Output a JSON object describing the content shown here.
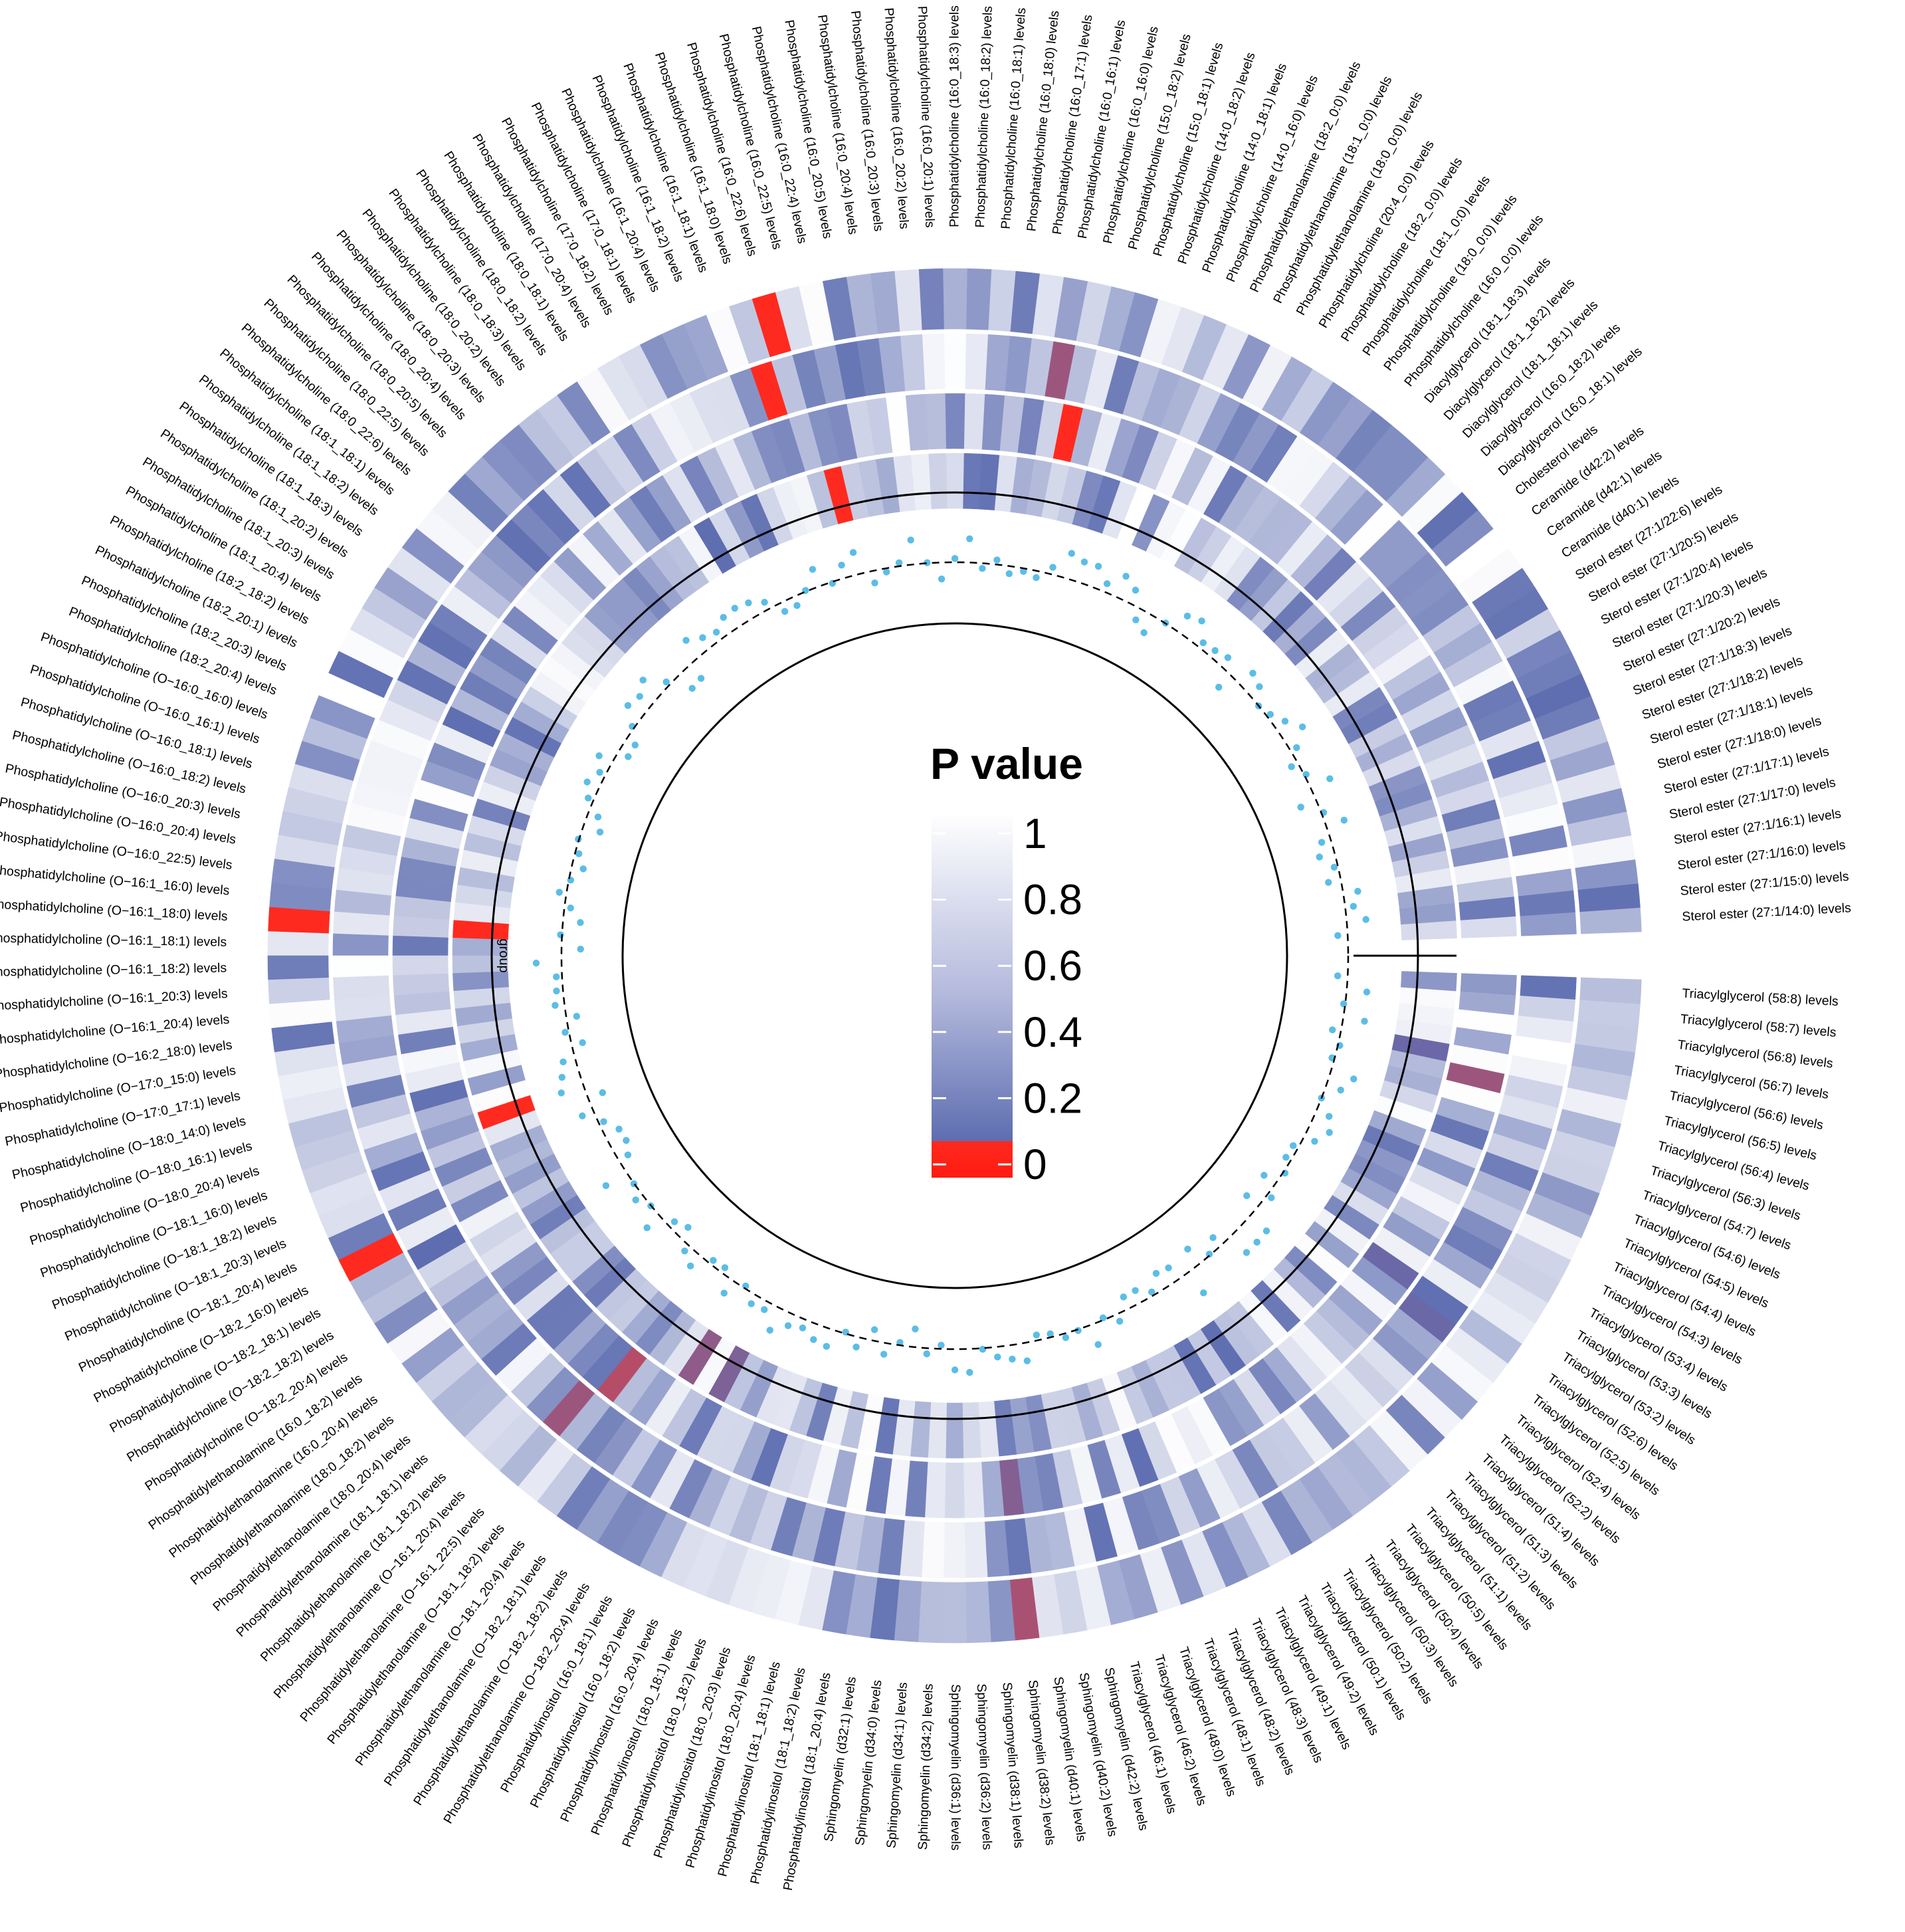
{
  "chart_data": {
    "type": "heatmap",
    "layout": "circular",
    "legend": {
      "title": "P value",
      "ticks": [
        "1",
        "0.8",
        "0.6",
        "0.4",
        "0.2",
        "0"
      ],
      "tick_values": [
        1,
        0.8,
        0.6,
        0.4,
        0.2,
        0
      ],
      "placement": "center"
    },
    "colors": {
      "high": "#ffffff",
      "low": "#5d6db0",
      "sig": "#ff2a1f"
    },
    "track_label": "group",
    "tracks": 4,
    "labels": [
      "Sterol ester (27:1/14:0) levels",
      "Sterol ester (27:1/15:0) levels",
      "Sterol ester (27:1/16:0) levels",
      "Sterol ester (27:1/16:1) levels",
      "Sterol ester (27:1/17:0) levels",
      "Sterol ester (27:1/17:1) levels",
      "Sterol ester (27:1/18:0) levels",
      "Sterol ester (27:1/18:1) levels",
      "Sterol ester (27:1/18:2) levels",
      "Sterol ester (27:1/18:3) levels",
      "Sterol ester (27:1/20:2) levels",
      "Sterol ester (27:1/20:3) levels",
      "Sterol ester (27:1/20:4) levels",
      "Sterol ester (27:1/20:5) levels",
      "Sterol ester (27:1/22:6) levels",
      "Ceramide (d40:1) levels",
      "Ceramide (d42:1) levels",
      "Ceramide (d42:2) levels",
      "Cholesterol levels",
      "Diacylglycerol (16:0_18:1) levels",
      "Diacylglycerol (16:0_18:2) levels",
      "Diacylglycerol (18:1_18:1) levels",
      "Diacylglycerol (18:1_18:2) levels",
      "Diacylglycerol (18:1_18:3) levels",
      "Phosphatidylcholine (16:0_0:0) levels",
      "Phosphatidylcholine (18:0_0:0) levels",
      "Phosphatidylcholine (18:1_0:0) levels",
      "Phosphatidylcholine (18:2_0:0) levels",
      "Phosphatidylcholine (20:4_0:0) levels",
      "Phosphatidylethanolamine (18:0_0:0) levels",
      "Phosphatidylethanolamine (18:1_0:0) levels",
      "Phosphatidylethanolamine (18:2_0:0) levels",
      "Phosphatidylcholine (14:0_16:0) levels",
      "Phosphatidylcholine (14:0_18:1) levels",
      "Phosphatidylcholine (14:0_18:2) levels",
      "Phosphatidylcholine (15:0_18:1) levels",
      "Phosphatidylcholine (15:0_18:2) levels",
      "Phosphatidylcholine (16:0_16:0) levels",
      "Phosphatidylcholine (16:0_16:1) levels",
      "Phosphatidylcholine (16:0_17:1) levels",
      "Phosphatidylcholine (16:0_18:0) levels",
      "Phosphatidylcholine (16:0_18:1) levels",
      "Phosphatidylcholine (16:0_18:2) levels",
      "Phosphatidylcholine (16:0_18:3) levels",
      "Phosphatidylcholine (16:0_20:1) levels",
      "Phosphatidylcholine (16:0_20:2) levels",
      "Phosphatidylcholine (16:0_20:3) levels",
      "Phosphatidylcholine (16:0_20:4) levels",
      "Phosphatidylcholine (16:0_20:5) levels",
      "Phosphatidylcholine (16:0_22:4) levels",
      "Phosphatidylcholine (16:0_22:5) levels",
      "Phosphatidylcholine (16:0_22:6) levels",
      "Phosphatidylcholine (16:1_18:0) levels",
      "Phosphatidylcholine (16:1_18:1) levels",
      "Phosphatidylcholine (16:1_18:2) levels",
      "Phosphatidylcholine (16:1_20:4) levels",
      "Phosphatidylcholine (17:0_18:1) levels",
      "Phosphatidylcholine (17:0_18:2) levels",
      "Phosphatidylcholine (17:0_20:4) levels",
      "Phosphatidylcholine (18:0_18:1) levels",
      "Phosphatidylcholine (18:0_18:2) levels",
      "Phosphatidylcholine (18:0_18:3) levels",
      "Phosphatidylcholine (18:0_20:2) levels",
      "Phosphatidylcholine (18:0_20:3) levels",
      "Phosphatidylcholine (18:0_20:4) levels",
      "Phosphatidylcholine (18:0_20:5) levels",
      "Phosphatidylcholine (18:0_22:5) levels",
      "Phosphatidylcholine (18:0_22:6) levels",
      "Phosphatidylcholine (18:1_18:1) levels",
      "Phosphatidylcholine (18:1_18:2) levels",
      "Phosphatidylcholine (18:1_18:3) levels",
      "Phosphatidylcholine (18:1_20:2) levels",
      "Phosphatidylcholine (18:1_20:3) levels",
      "Phosphatidylcholine (18:1_20:4) levels",
      "Phosphatidylcholine (18:2_18:2) levels",
      "Phosphatidylcholine (18:2_20:1) levels",
      "Phosphatidylcholine (18:2_20:3) levels",
      "Phosphatidylcholine (18:2_20:4) levels",
      "Phosphatidylcholine (O−16:0_16:0) levels",
      "Phosphatidylcholine (O−16:0_16:1) levels",
      "Phosphatidylcholine (O−16:0_18:1) levels",
      "Phosphatidylcholine (O−16:0_18:2) levels",
      "Phosphatidylcholine (O−16:0_20:3) levels",
      "Phosphatidylcholine (O−16:0_20:4) levels",
      "Phosphatidylcholine (O−16:0_22:5) levels",
      "Phosphatidylcholine (O−16:1_16:0) levels",
      "Phosphatidylcholine (O−16:1_18:0) levels",
      "Phosphatidylcholine (O−16:1_18:1) levels",
      "Phosphatidylcholine (O−16:1_18:2) levels",
      "Phosphatidylcholine (O−16:1_20:3) levels",
      "Phosphatidylcholine (O−16:1_20:4) levels",
      "Phosphatidylcholine (O−16:2_18:0) levels",
      "Phosphatidylcholine (O−17:0_15:0) levels",
      "Phosphatidylcholine (O−17:0_17:1) levels",
      "Phosphatidylcholine (O−18:0_14:0) levels",
      "Phosphatidylcholine (O−18:0_16:1) levels",
      "Phosphatidylcholine (O−18:0_20:4) levels",
      "Phosphatidylcholine (O−18:1_16:0) levels",
      "Phosphatidylcholine (O−18:1_18:2) levels",
      "Phosphatidylcholine (O−18:1_20:3) levels",
      "Phosphatidylcholine (O−18:1_20:4) levels",
      "Phosphatidylcholine (O−18:2_16:0) levels",
      "Phosphatidylcholine (O−18:2_18:1) levels",
      "Phosphatidylcholine (O−18:2_18:2) levels",
      "Phosphatidylcholine (O−18:2_20:4) levels",
      "Phosphatidylethanolamine (16:0_18:2) levels",
      "Phosphatidylethanolamine (16:0_20:4) levels",
      "Phosphatidylethanolamine (18:0_18:2) levels",
      "Phosphatidylethanolamine (18:0_20:4) levels",
      "Phosphatidylethanolamine (18:1_18:1) levels",
      "Phosphatidylethanolamine (18:1_18:2) levels",
      "Phosphatidylethanolamine (O−16:1_20:4) levels",
      "Phosphatidylethanolamine (O−16:1_22:5) levels",
      "Phosphatidylethanolamine (O−18:1_18:2) levels",
      "Phosphatidylethanolamine (O−18:1_20:4) levels",
      "Phosphatidylethanolamine (O−18:2_18:1) levels",
      "Phosphatidylethanolamine (O−18:2_18:2) levels",
      "Phosphatidylethanolamine (O−18:2_20:4) levels",
      "Phosphatidylinositol (16:0_18:1) levels",
      "Phosphatidylinositol (16:0_18:2) levels",
      "Phosphatidylinositol (16:0_20:4) levels",
      "Phosphatidylinositol (18:0_18:1) levels",
      "Phosphatidylinositol (18:0_18:2) levels",
      "Phosphatidylinositol (18:0_20:3) levels",
      "Phosphatidylinositol (18:0_20:4) levels",
      "Phosphatidylinositol (18:1_18:1) levels",
      "Phosphatidylinositol (18:1_18:2) levels",
      "Phosphatidylinositol (18:1_20:4) levels",
      "Sphingomyelin (d32:1) levels",
      "Sphingomyelin (d34:0) levels",
      "Sphingomyelin (d34:1) levels",
      "Sphingomyelin (d34:2) levels",
      "Sphingomyelin (d36:1) levels",
      "Sphingomyelin (d36:2) levels",
      "Sphingomyelin (d38:1) levels",
      "Sphingomyelin (d38:2) levels",
      "Sphingomyelin (d40:1) levels",
      "Sphingomyelin (d40:2) levels",
      "Sphingomyelin (d42:2) levels",
      "Triacylglycerol (46:1) levels",
      "Triacylglycerol (46:2) levels",
      "Triacylglycerol (48:0) levels",
      "Triacylglycerol (48:1) levels",
      "Triacylglycerol (48:2) levels",
      "Triacylglycerol (48:3) levels",
      "Triacylglycerol (49:1) levels",
      "Triacylglycerol (49:2) levels",
      "Triacylglycerol (50:1) levels",
      "Triacylglycerol (50:2) levels",
      "Triacylglycerol (50:3) levels",
      "Triacylglycerol (50:4) levels",
      "Triacylglycerol (50:5) levels",
      "Triacylglycerol (51:1) levels",
      "Triacylglycerol (51:2) levels",
      "Triacylglycerol (51:3) levels",
      "Triacylglycerol (51:4) levels",
      "Triacylglycerol (52:2) levels",
      "Triacylglycerol (52:4) levels",
      "Triacylglycerol (52:5) levels",
      "Triacylglycerol (52:6) levels",
      "Triacylglycerol (53:2) levels",
      "Triacylglycerol (53:3) levels",
      "Triacylglycerol (53:4) levels",
      "Triacylglycerol (54:3) levels",
      "Triacylglycerol (54:4) levels",
      "Triacylglycerol (54:5) levels",
      "Triacylglycerol (54:6) levels",
      "Triacylglycerol (54:7) levels",
      "Triacylglycerol (56:3) levels",
      "Triacylglycerol (56:4) levels",
      "Triacylglycerol (56:5) levels",
      "Triacylglycerol (56:6) levels",
      "Triacylglycerol (56:7) levels",
      "Triacylglycerol (56:8) levels",
      "Triacylglycerol (58:7) levels",
      "Triacylglycerol (58:8) levels"
    ],
    "significant_cells": [
      {
        "label": "Phosphatidylcholine (O−16:1_18:0) levels",
        "track": 0,
        "p": 0.0
      },
      {
        "label": "Phosphatidylcholine (O−16:1_18:0) levels",
        "track": 3,
        "p": 0.0
      },
      {
        "label": "Phosphatidylcholine (O−18:2_16:0) levels",
        "track": 0,
        "p": 0.02
      },
      {
        "label": "Phosphatidylcholine (O−18:1_16:0) levels",
        "track": 3,
        "p": 0.02
      },
      {
        "label": "Phosphatidylethanolamine (O−16:1_22:5) levels",
        "track": 1,
        "p": 0.1
      },
      {
        "label": "Phosphatidylethanolamine (O−18:1_18:2) levels",
        "track": 2,
        "p": 0.06
      },
      {
        "label": "Phosphatidylethanolamine (O−18:2_18:2) levels",
        "track": 3,
        "p": 0.12
      },
      {
        "label": "Phosphatidylinositol (16:0_18:1) levels",
        "track": 3,
        "p": 0.15
      },
      {
        "label": "Sphingomyelin (d38:2) levels",
        "track": 0,
        "p": 0.08
      },
      {
        "label": "Sphingomyelin (d38:2) levels",
        "track": 2,
        "p": 0.14
      },
      {
        "label": "Triacylglycerol (52:5) levels",
        "track": 1,
        "p": 0.18
      },
      {
        "label": "Triacylglycerol (52:6) levels",
        "track": 2,
        "p": 0.18
      },
      {
        "label": "Triacylglycerol (56:5) levels",
        "track": 2,
        "p": 0.1
      },
      {
        "label": "Triacylglycerol (56:6) levels",
        "track": 3,
        "p": 0.18
      },
      {
        "label": "Phosphatidylcholine (16:0_22:6) levels",
        "track": 0,
        "p": 0.0
      },
      {
        "label": "Phosphatidylcholine (16:0_22:5) levels",
        "track": 3,
        "p": 0.0
      },
      {
        "label": "Phosphatidylcholine (16:1_18:0) levels",
        "track": 1,
        "p": 0.01
      },
      {
        "label": "Phosphatidylcholine (16:0_16:1) levels",
        "track": 1,
        "p": 0.1
      },
      {
        "label": "Phosphatidylcholine (16:0_16:0) levels",
        "track": 2,
        "p": 0.01
      }
    ],
    "grid": false
  }
}
